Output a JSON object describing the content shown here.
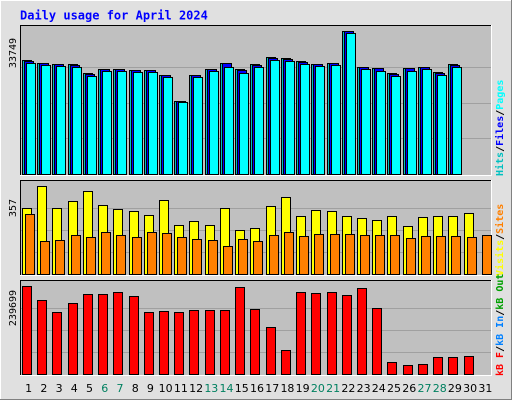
{
  "chart_data": {
    "type": "bar",
    "title": "Daily usage for April 2024",
    "days": [
      1,
      2,
      3,
      4,
      5,
      6,
      7,
      8,
      9,
      10,
      11,
      12,
      13,
      14,
      15,
      16,
      17,
      18,
      19,
      20,
      21,
      22,
      23,
      24,
      25,
      26,
      27,
      28,
      29,
      30,
      31
    ],
    "weekend_days": [
      6,
      7,
      13,
      14,
      20,
      21,
      27,
      28
    ],
    "colors": {
      "title": "#0000ff",
      "hits": "#00c0c0",
      "files": "#0000ff",
      "pages": "#00ffff",
      "visits": "#ffff00",
      "sites": "#ff8000",
      "kbin": "#0080ff",
      "kbout": "#00a000",
      "kbf": "#ff0000",
      "weekday_label": "#000000",
      "weekend_label": "#008060"
    },
    "panels": [
      {
        "id": "hits_files_pages",
        "max_label": "33749",
        "max": 33749,
        "legend": [
          {
            "text": "Hits",
            "color": "#00c0c0"
          },
          {
            "text": "/",
            "color": "#000000"
          },
          {
            "text": "Files",
            "color": "#0000ff"
          },
          {
            "text": "/",
            "color": "#000000"
          },
          {
            "text": "Pages",
            "color": "#00ffff"
          }
        ],
        "series": [
          {
            "name": "Hits",
            "color": "#00c0c0",
            "values": [
              26800,
              26200,
              26000,
              25900,
              23800,
              24800,
              24800,
              24600,
              24600,
              23400,
              17300,
              23400,
              24800,
              26200,
              24800,
              25900,
              27600,
              27300,
              26600,
              26000,
              26300,
              33700,
              25300,
              25000,
              23800,
              25000,
              25300,
              24000,
              25900,
              0,
              0
            ]
          },
          {
            "name": "Files",
            "color": "#0000ff",
            "values": [
              26700,
              26100,
              25900,
              25800,
              23700,
              24700,
              24700,
              24500,
              24500,
              23300,
              17200,
              23300,
              24700,
              26100,
              24600,
              25800,
              27400,
              27200,
              26500,
              25900,
              26200,
              33700,
              25200,
              24900,
              23700,
              24900,
              25200,
              23900,
              25800,
              0,
              0
            ]
          },
          {
            "name": "Pages",
            "color": "#00ffff",
            "values": [
              26300,
              25700,
              25500,
              25300,
              23200,
              24300,
              24300,
              24100,
              24100,
              22800,
              17000,
              22900,
              24300,
              25300,
              23900,
              25300,
              26800,
              26600,
              25900,
              25400,
              25700,
              33300,
              24800,
              24400,
              23200,
              24400,
              24800,
              23400,
              25200,
              0,
              0
            ]
          }
        ]
      },
      {
        "id": "visits_sites",
        "max_label": "357",
        "max": 357,
        "legend": [
          {
            "text": "Visits",
            "color": "#ffff00"
          },
          {
            "text": "/",
            "color": "#000000"
          },
          {
            "text": "Sites",
            "color": "#ff8000"
          }
        ],
        "series": [
          {
            "name": "Visits",
            "color": "#ffff00",
            "values": [
              268,
              357,
              266,
              297,
              336,
              280,
              264,
              256,
              241,
              302,
              197,
              216,
              199,
              268,
              178,
              185,
              276,
              314,
              234,
              260,
              256,
              234,
              229,
              220,
              234,
              196,
              230,
              237,
              234,
              246,
              0
            ]
          },
          {
            "name": "Sites",
            "color": "#ff8000",
            "values": [
              242,
              135,
              136,
              159,
              150,
              172,
              160,
              150,
              170,
              165,
              150,
              142,
              138,
              114,
              141,
              132,
              160,
              171,
              153,
              162,
              162,
              164,
              160,
              160,
              160,
              147,
              155,
              155,
              154,
              152,
              159
            ]
          }
        ]
      },
      {
        "id": "kbytes",
        "max_label": "239699",
        "max": 239699,
        "legend": [
          {
            "text": "kB F",
            "color": "#ff0000"
          },
          {
            "text": "/",
            "color": "#000000"
          },
          {
            "text": "kB In",
            "color": "#0080ff"
          },
          {
            "text": "/",
            "color": "#000000"
          },
          {
            "text": "kB Out",
            "color": "#00a000"
          }
        ],
        "series": [
          {
            "name": "kB F",
            "color": "#ff0000",
            "values": [
              239699,
              202000,
              169000,
              193000,
              219000,
              219000,
              222000,
              212000,
              168000,
              171000,
              168000,
              173000,
              173000,
              175000,
              238000,
              177000,
              128000,
              65000,
              224000,
              221000,
              222000,
              216000,
              233000,
              180000,
              32000,
              24000,
              26000,
              46000,
              46000,
              49000,
              0
            ]
          }
        ]
      }
    ]
  }
}
